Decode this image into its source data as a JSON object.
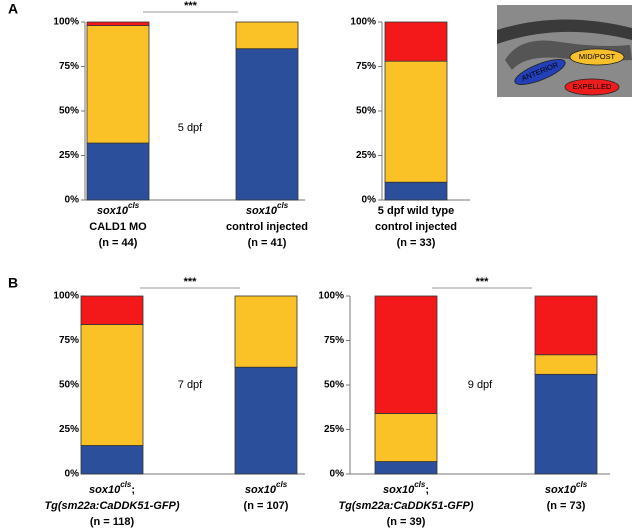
{
  "panels": [
    "A",
    "B"
  ],
  "inset": {
    "labels": [
      {
        "text": "ANTERIOR",
        "color": "#2340b8"
      },
      {
        "text": "MID/POST",
        "color": "#f8c12c"
      },
      {
        "text": "EXPELLED",
        "color": "#ee1d1d"
      }
    ]
  },
  "chart_data": [
    {
      "type": "stacked_bar",
      "categories": [
        {
          "gene": "sox10",
          "sup": "cls",
          "lines": [
            "CALD1 MO",
            "(n = 44)"
          ]
        },
        {
          "gene": "sox10",
          "sup": "cls",
          "lines": [
            "control injected",
            "(n = 41)"
          ]
        }
      ],
      "series": [
        {
          "color": "#2b4f9b",
          "values": [
            32,
            85
          ]
        },
        {
          "color": "#fbc227",
          "values": [
            66,
            15
          ]
        },
        {
          "color": "#f3191a",
          "values": [
            2,
            0
          ]
        }
      ],
      "ylim": [
        0,
        100
      ],
      "yticks": [
        {
          "value": 0,
          "label": "0%"
        },
        {
          "value": 25,
          "label": "25%"
        },
        {
          "value": 50,
          "label": "50%"
        },
        {
          "value": 75,
          "label": "75%"
        },
        {
          "value": 100,
          "label": "100%"
        }
      ],
      "significance": "***",
      "note": "5 dpf"
    },
    {
      "type": "stacked_bar",
      "categories": [
        {
          "lines": [
            "5 dpf wild type",
            "control injected",
            "(n = 33)"
          ]
        }
      ],
      "series": [
        {
          "color": "#2b4f9b",
          "values": [
            10
          ]
        },
        {
          "color": "#fbc227",
          "values": [
            68
          ]
        },
        {
          "color": "#f3191a",
          "values": [
            22
          ]
        }
      ],
      "ylim": [
        0,
        100
      ],
      "yticks": [
        {
          "value": 0,
          "label": "0%"
        },
        {
          "value": 25,
          "label": "25%"
        },
        {
          "value": 50,
          "label": "50%"
        },
        {
          "value": 75,
          "label": "75%"
        },
        {
          "value": 100,
          "label": "100%"
        }
      ]
    },
    {
      "type": "stacked_bar",
      "categories": [
        {
          "gene": "sox10",
          "sup": "cls",
          "suffix": ";",
          "lines": [
            "Tg(sm22a:CaDDK51-GFP)",
            "(n = 118)"
          ]
        },
        {
          "gene": "sox10",
          "sup": "cls",
          "lines": [
            "(n = 107)"
          ]
        }
      ],
      "series": [
        {
          "color": "#2b4f9b",
          "values": [
            16,
            60
          ]
        },
        {
          "color": "#fbc227",
          "values": [
            68,
            40
          ]
        },
        {
          "color": "#f3191a",
          "values": [
            16,
            0
          ]
        }
      ],
      "ylim": [
        0,
        100
      ],
      "yticks": [
        {
          "value": 0,
          "label": "0%"
        },
        {
          "value": 25,
          "label": "25%"
        },
        {
          "value": 50,
          "label": "50%"
        },
        {
          "value": 75,
          "label": "75%"
        },
        {
          "value": 100,
          "label": "100%"
        }
      ],
      "significance": "***",
      "note": "7 dpf"
    },
    {
      "type": "stacked_bar",
      "categories": [
        {
          "gene": "sox10",
          "sup": "cls",
          "suffix": ";",
          "lines": [
            "Tg(sm22a:CaDDK51-GFP)",
            "(n = 39)"
          ]
        },
        {
          "gene": "sox10",
          "sup": "cls",
          "lines": [
            "(n = 73)"
          ]
        }
      ],
      "series": [
        {
          "color": "#2b4f9b",
          "values": [
            7,
            56
          ]
        },
        {
          "color": "#fbc227",
          "values": [
            27,
            11
          ]
        },
        {
          "color": "#f3191a",
          "values": [
            66,
            33
          ]
        }
      ],
      "ylim": [
        0,
        100
      ],
      "yticks": [
        {
          "value": 0,
          "label": "0%"
        },
        {
          "value": 25,
          "label": "25%"
        },
        {
          "value": 50,
          "label": "50%"
        },
        {
          "value": 75,
          "label": "75%"
        },
        {
          "value": 100,
          "label": "100%"
        }
      ],
      "significance": "***",
      "note": "9 dpf"
    }
  ]
}
